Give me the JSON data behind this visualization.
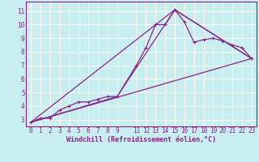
{
  "xlabel": "Windchill (Refroidissement éolien,°C)",
  "background_color": "#c8eef0",
  "grid_color": "#b0d8dc",
  "line_color": "#882288",
  "spine_color": "#882288",
  "xlim": [
    -0.5,
    23.5
  ],
  "ylim": [
    2.5,
    11.7
  ],
  "xticks": [
    0,
    1,
    2,
    3,
    4,
    5,
    6,
    7,
    8,
    9,
    11,
    12,
    13,
    14,
    15,
    16,
    17,
    18,
    19,
    20,
    21,
    22,
    23
  ],
  "yticks": [
    3,
    4,
    5,
    6,
    7,
    8,
    9,
    10,
    11
  ],
  "line1_x": [
    0,
    1,
    2,
    3,
    4,
    5,
    6,
    7,
    8,
    9,
    11,
    12,
    13,
    14,
    15,
    16,
    17,
    18,
    19,
    20,
    21,
    22,
    23
  ],
  "line1_y": [
    2.8,
    3.1,
    3.1,
    3.7,
    4.0,
    4.3,
    4.3,
    4.5,
    4.7,
    4.7,
    7.0,
    8.3,
    10.0,
    10.0,
    11.1,
    10.2,
    8.7,
    8.9,
    9.0,
    8.8,
    8.5,
    8.3,
    7.5
  ],
  "line2_x": [
    0,
    23
  ],
  "line2_y": [
    2.8,
    7.5
  ],
  "line3_x": [
    0,
    15,
    23
  ],
  "line3_y": [
    2.8,
    11.1,
    7.5
  ],
  "line4_x": [
    0,
    9,
    15,
    23
  ],
  "line4_y": [
    2.8,
    4.7,
    11.1,
    7.5
  ],
  "tick_fontsize": 5.5,
  "xlabel_fontsize": 6.0
}
